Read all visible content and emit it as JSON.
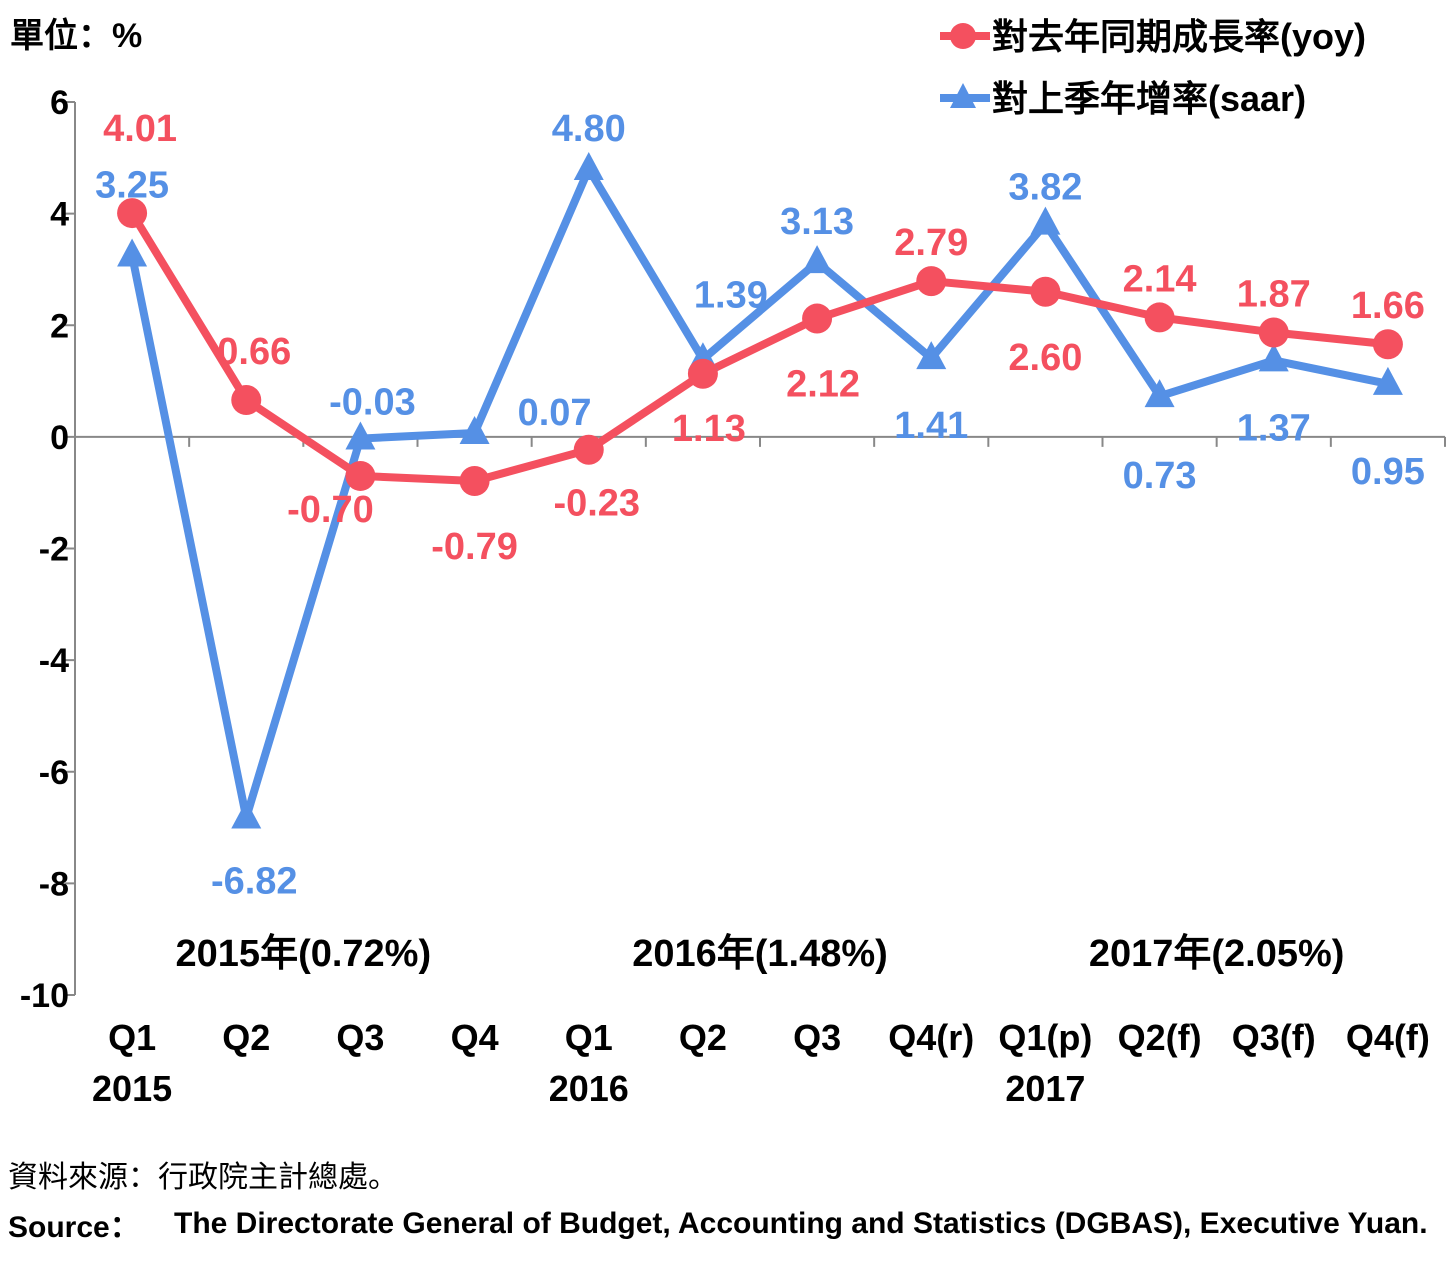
{
  "unit_label": "單位：%",
  "source": {
    "zh": "資料來源：行政院主計總處。",
    "en_label": "Source：",
    "en_text": "The Directorate General of Budget, Accounting and Statistics (DGBAS), Executive Yuan."
  },
  "chart_data": {
    "type": "line",
    "title": "",
    "xlabel": "",
    "ylabel": "",
    "ylim": [
      -10,
      6
    ],
    "yticks": [
      6,
      4,
      2,
      0,
      -2,
      -4,
      -6,
      -8,
      -10
    ],
    "grid": false,
    "legend_position": "top-right",
    "categories": [
      "Q1",
      "Q2",
      "Q3",
      "Q4",
      "Q1",
      "Q2",
      "Q3",
      "Q4(r)",
      "Q1(p)",
      "Q2(f)",
      "Q3(f)",
      "Q4(f)"
    ],
    "year_labels": [
      {
        "label": "2015",
        "at": 0
      },
      {
        "label": "2016",
        "at": 4
      },
      {
        "label": "2017",
        "at": 8
      }
    ],
    "annual_labels": [
      {
        "label": "2015年(0.72%)",
        "from": 0,
        "to": 3
      },
      {
        "label": "2016年(1.48%)",
        "from": 4,
        "to": 7
      },
      {
        "label": "2017年(2.05%)",
        "from": 8,
        "to": 11
      }
    ],
    "series": [
      {
        "name": "對去年同期成長率(yoy)",
        "color": "#f4505f",
        "marker": "circle",
        "values": [
          4.01,
          0.66,
          -0.7,
          -0.79,
          -0.23,
          1.13,
          2.12,
          2.79,
          2.6,
          2.14,
          1.87,
          1.66
        ],
        "labels": [
          "4.01",
          "0.66",
          "-0.70",
          "-0.79",
          "-0.23",
          "1.13",
          "2.12",
          "2.79",
          "2.60",
          "2.14",
          "1.87",
          "1.66"
        ]
      },
      {
        "name": "對上季年增率(saar)",
        "color": "#5590e5",
        "marker": "triangle",
        "values": [
          3.25,
          -6.82,
          -0.03,
          0.07,
          4.8,
          1.39,
          3.13,
          1.41,
          3.82,
          0.73,
          1.37,
          0.95
        ],
        "labels": [
          "3.25",
          "-6.82",
          "-0.03",
          "0.07",
          "4.80",
          "1.39",
          "3.13",
          "1.41",
          "3.82",
          "0.73",
          "1.37",
          "0.95"
        ]
      }
    ]
  }
}
